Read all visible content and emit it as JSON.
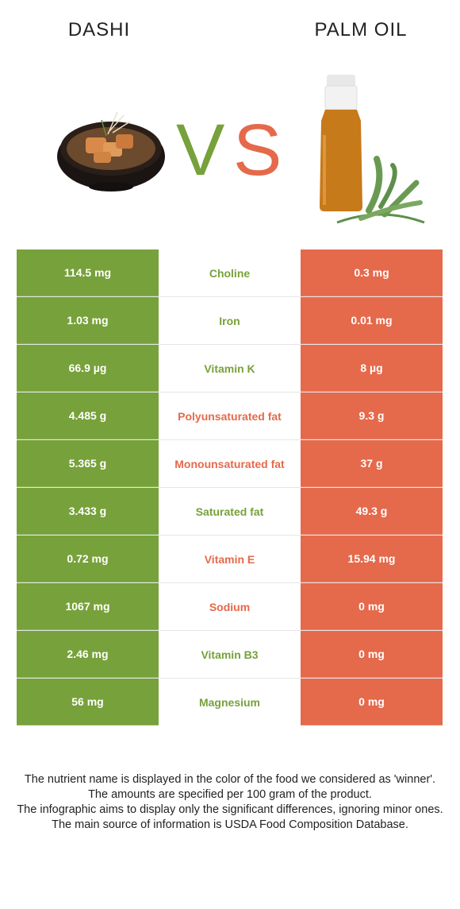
{
  "header": {
    "left_food": "DASHI",
    "right_food": "PALM OIL",
    "vs_left": "V",
    "vs_right": "S"
  },
  "colors": {
    "left": "#77a13a",
    "right": "#e5694b"
  },
  "rows": [
    {
      "left": "114.5 mg",
      "nutrient": "Choline",
      "right": "0.3 mg",
      "winner": "left"
    },
    {
      "left": "1.03 mg",
      "nutrient": "Iron",
      "right": "0.01 mg",
      "winner": "left"
    },
    {
      "left": "66.9 µg",
      "nutrient": "Vitamin K",
      "right": "8 µg",
      "winner": "left"
    },
    {
      "left": "4.485 g",
      "nutrient": "Polyunsaturated fat",
      "right": "9.3 g",
      "winner": "right"
    },
    {
      "left": "5.365 g",
      "nutrient": "Monounsaturated fat",
      "right": "37 g",
      "winner": "right"
    },
    {
      "left": "3.433 g",
      "nutrient": "Saturated fat",
      "right": "49.3 g",
      "winner": "left"
    },
    {
      "left": "0.72 mg",
      "nutrient": "Vitamin E",
      "right": "15.94 mg",
      "winner": "right"
    },
    {
      "left": "1067 mg",
      "nutrient": "Sodium",
      "right": "0 mg",
      "winner": "right"
    },
    {
      "left": "2.46 mg",
      "nutrient": "Vitamin B3",
      "right": "0 mg",
      "winner": "left"
    },
    {
      "left": "56 mg",
      "nutrient": "Magnesium",
      "right": "0 mg",
      "winner": "left"
    }
  ],
  "footer": {
    "line1": "The nutrient name is displayed in the color of the food we considered as 'winner'.",
    "line2": "The amounts are specified per 100 gram of the product.",
    "line3": "The infographic aims to display only the significant differences, ignoring minor ones.",
    "line4": "The main source of information is USDA Food Composition Database."
  }
}
